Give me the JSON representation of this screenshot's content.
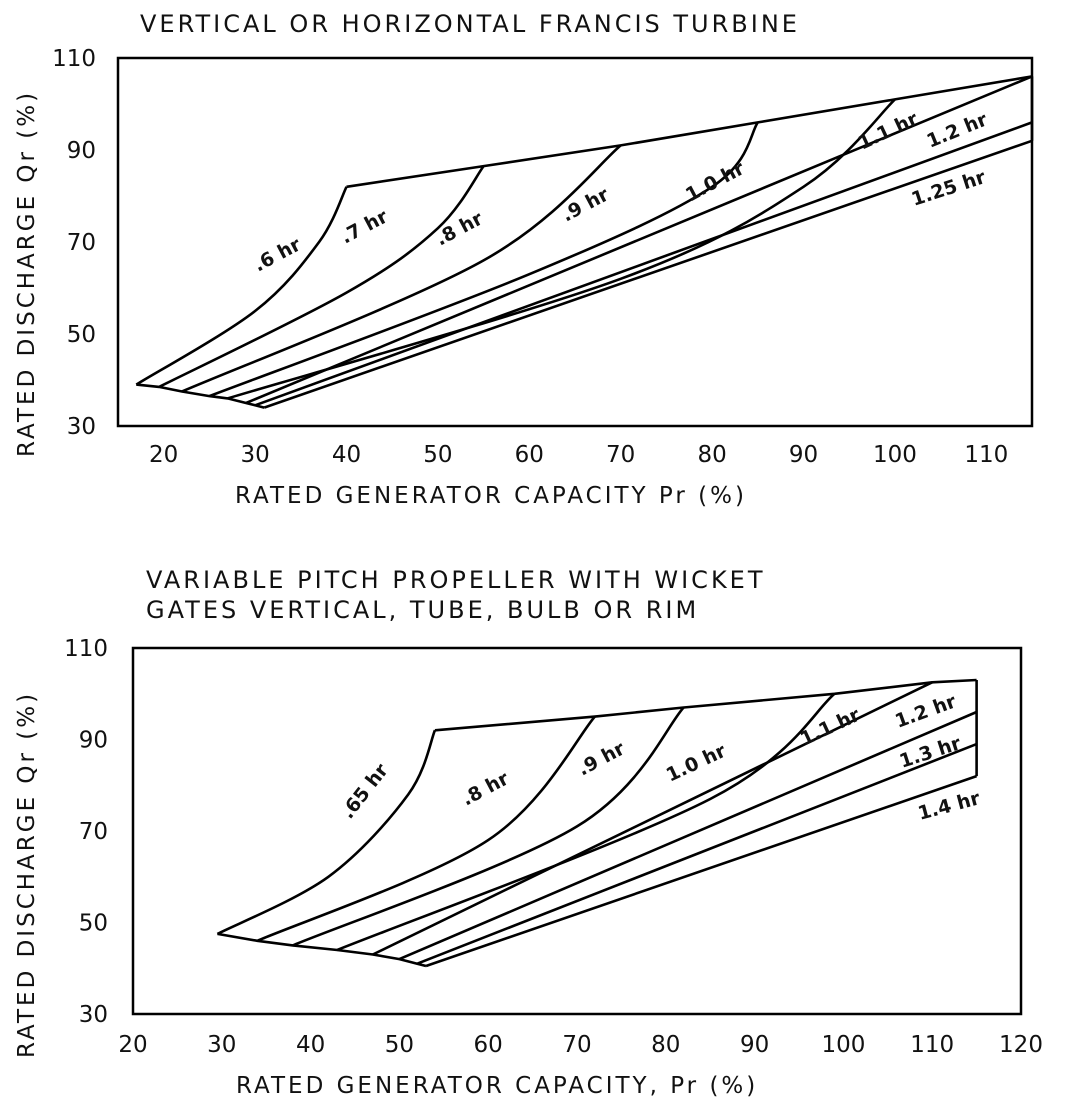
{
  "chart_data": [
    {
      "type": "line",
      "title": "VERTICAL OR HORIZONTAL FRANCIS TURBINE",
      "xlabel": "RATED GENERATOR CAPACITY Pr (%)",
      "ylabel": "RATED DISCHARGE Qr (%)",
      "xlim": [
        15,
        115
      ],
      "ylim": [
        30,
        110
      ],
      "xticks": [
        "20",
        "30",
        "40",
        "50",
        "60",
        "70",
        "80",
        "90",
        "100",
        "110"
      ],
      "yticks": [
        "30",
        "50",
        "70",
        "90",
        "110"
      ],
      "grid": false,
      "envelope": {
        "name": "upper boundary",
        "points": [
          [
            40,
            82
          ],
          [
            55,
            86.5
          ],
          [
            70,
            91
          ],
          [
            85,
            96
          ],
          [
            100,
            101
          ],
          [
            115,
            106
          ]
        ]
      },
      "series": [
        {
          "name": ".6 hr",
          "points": [
            [
              17,
              39
            ],
            [
              30,
              55
            ],
            [
              37,
              70
            ],
            [
              40,
              82
            ]
          ]
        },
        {
          "name": ".7 hr",
          "points": [
            [
              19.5,
              38.5
            ],
            [
              40,
              59
            ],
            [
              50,
              73
            ],
            [
              55,
              86.5
            ]
          ]
        },
        {
          "name": ".8 hr",
          "points": [
            [
              22,
              37.5
            ],
            [
              55,
              66
            ],
            [
              70,
              91
            ]
          ]
        },
        {
          "name": ".9 hr",
          "points": [
            [
              25,
              36.5
            ],
            [
              60,
              63
            ],
            [
              80,
              82
            ],
            [
              85,
              96
            ]
          ]
        },
        {
          "name": "1.0 hr",
          "points": [
            [
              27,
              36
            ],
            [
              70,
              62
            ],
            [
              90,
              82
            ],
            [
              100,
              101
            ]
          ]
        },
        {
          "name": "1.1 hr",
          "points": [
            [
              29,
              35
            ],
            [
              115,
              106
            ]
          ]
        },
        {
          "name": "1.2 hr",
          "points": [
            [
              30,
              34.5
            ],
            [
              115,
              96
            ]
          ]
        },
        {
          "name": "1.25 hr",
          "points": [
            [
              31,
              34
            ],
            [
              115,
              92
            ]
          ]
        }
      ],
      "curve_labels": [
        ".6 hr",
        ".7 hr",
        ".8 hr",
        ".9 hr",
        "1.0 hr",
        "1.1 hr",
        "1.2 hr",
        "1.25 hr"
      ]
    },
    {
      "type": "line",
      "title": "VARIABLE PITCH PROPELLER WITH WICKET",
      "subtitle": "GATES VERTICAL, TUBE, BULB OR RIM",
      "xlabel": "RATED GENERATOR CAPACITY, Pr (%)",
      "ylabel": "RATED DISCHARGE Qr (%)",
      "xlim": [
        20,
        120
      ],
      "ylim": [
        30,
        110
      ],
      "xticks": [
        "20",
        "30",
        "40",
        "50",
        "60",
        "70",
        "80",
        "90",
        "100",
        "110",
        "120"
      ],
      "yticks": [
        "30",
        "50",
        "70",
        "90",
        "110"
      ],
      "grid": false,
      "envelope": {
        "name": "upper boundary",
        "points": [
          [
            54,
            92
          ],
          [
            72,
            95
          ],
          [
            82,
            97
          ],
          [
            99,
            100
          ],
          [
            110,
            102.5
          ],
          [
            115,
            103
          ]
        ]
      },
      "series": [
        {
          "name": ".65 hr",
          "points": [
            [
              29.5,
              47.5
            ],
            [
              42,
              60
            ],
            [
              51,
              78
            ],
            [
              54,
              92
            ]
          ]
        },
        {
          "name": ".8 hr",
          "points": [
            [
              34,
              46
            ],
            [
              60,
              68
            ],
            [
              72,
              95
            ]
          ]
        },
        {
          "name": ".9 hr",
          "points": [
            [
              38,
              45
            ],
            [
              70,
              71
            ],
            [
              82,
              97
            ]
          ]
        },
        {
          "name": "1.0 hr",
          "points": [
            [
              43,
              44
            ],
            [
              85,
              77
            ],
            [
              99,
              100
            ]
          ]
        },
        {
          "name": "1.1 hr",
          "points": [
            [
              47,
              43
            ],
            [
              110,
              102.5
            ]
          ]
        },
        {
          "name": "1.2 hr",
          "points": [
            [
              50,
              42
            ],
            [
              115,
              96
            ]
          ]
        },
        {
          "name": "1.3 hr",
          "points": [
            [
              52,
              41
            ],
            [
              115,
              89
            ]
          ]
        },
        {
          "name": "1.4 hr",
          "points": [
            [
              53,
              40.5
            ],
            [
              115,
              82
            ]
          ]
        }
      ],
      "curve_labels": [
        ".65 hr",
        ".8 hr",
        ".9 hr",
        "1.0 hr",
        "1.1 hr",
        "1.2 hr",
        "1.3 hr",
        "1.4 hr"
      ]
    }
  ]
}
